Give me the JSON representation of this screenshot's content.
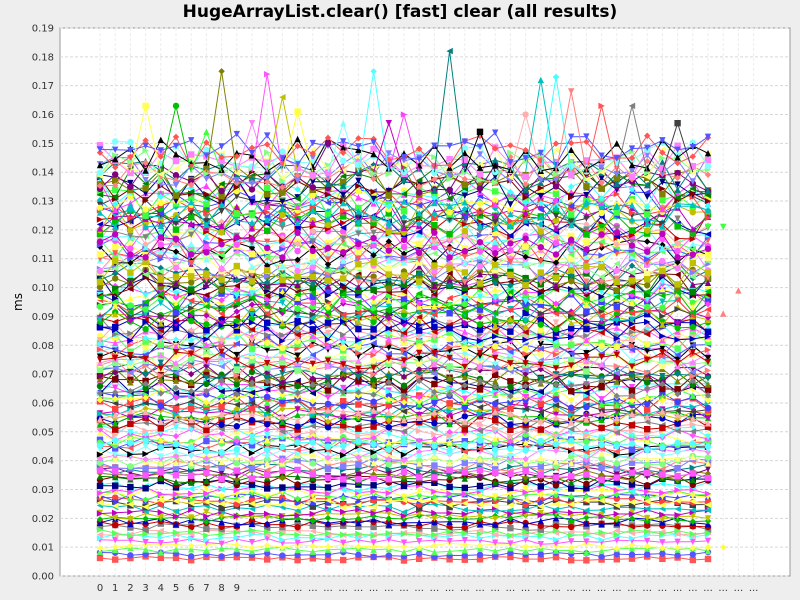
{
  "chart_data": {
    "type": "line",
    "title": "HugeArrayList.clear() [fast] clear (all results)",
    "xlabel": "",
    "ylabel": "ms",
    "ylim": [
      0,
      0.19
    ],
    "yticks": [
      "0.00",
      "0.01",
      "0.02",
      "0.03",
      "0.04",
      "0.05",
      "0.06",
      "0.07",
      "0.08",
      "0.09",
      "0.10",
      "0.11",
      "0.12",
      "0.13",
      "0.14",
      "0.15",
      "0.16",
      "0.17",
      "0.18",
      "0.19"
    ],
    "xticks": [
      "0",
      "1",
      "2",
      "3",
      "4",
      "5",
      "6",
      "7",
      "8",
      "9",
      "...",
      "...",
      "...",
      "...",
      "...",
      "...",
      "...",
      "...",
      "...",
      "...",
      "...",
      "...",
      "...",
      "...",
      "...",
      "...",
      "...",
      "...",
      "...",
      "...",
      "...",
      "...",
      "...",
      "...",
      "...",
      "...",
      "...",
      "...",
      "...",
      "...",
      "...",
      "...",
      "...",
      "..."
    ],
    "grid": true,
    "legend": "none",
    "num_points": 44,
    "num_series": 150,
    "series_levels_ms": [
      0.006,
      0.0075,
      0.009,
      0.0105,
      0.012,
      0.0135,
      0.015,
      0.017,
      0.018,
      0.019,
      0.02,
      0.021,
      0.022,
      0.0235,
      0.025,
      0.026,
      0.027,
      0.028,
      0.029,
      0.03,
      0.031,
      0.032,
      0.033,
      0.034,
      0.035,
      0.036,
      0.037,
      0.038,
      0.039,
      0.04,
      0.041,
      0.042,
      0.043,
      0.044,
      0.045,
      0.046,
      0.047,
      0.048,
      0.049,
      0.05,
      0.051,
      0.052,
      0.053,
      0.054,
      0.055,
      0.056,
      0.057,
      0.058,
      0.059,
      0.06,
      0.061,
      0.062,
      0.063,
      0.064,
      0.065,
      0.066,
      0.067,
      0.068,
      0.069,
      0.07,
      0.071,
      0.072,
      0.073,
      0.074,
      0.075,
      0.076,
      0.077,
      0.078,
      0.079,
      0.08,
      0.081,
      0.082,
      0.083,
      0.084,
      0.085,
      0.086,
      0.087,
      0.088,
      0.089,
      0.09,
      0.091,
      0.092,
      0.093,
      0.094,
      0.095,
      0.096,
      0.097,
      0.098,
      0.099,
      0.1,
      0.101,
      0.102,
      0.103,
      0.104,
      0.105,
      0.106,
      0.107,
      0.108,
      0.109,
      0.11,
      0.111,
      0.112,
      0.113,
      0.114,
      0.115,
      0.116,
      0.117,
      0.118,
      0.119,
      0.12,
      0.121,
      0.122,
      0.123,
      0.124,
      0.125,
      0.126,
      0.127,
      0.128,
      0.129,
      0.13,
      0.131,
      0.132,
      0.133,
      0.134,
      0.135,
      0.136,
      0.137,
      0.138,
      0.139,
      0.14,
      0.141,
      0.142,
      0.143,
      0.144,
      0.145,
      0.146,
      0.147,
      0.148,
      0.015,
      0.025,
      0.035,
      0.045,
      0.055,
      0.065,
      0.075,
      0.085,
      0.095,
      0.105,
      0.115,
      0.125
    ],
    "spikes": [
      {
        "x": 3,
        "y": 0.163
      },
      {
        "x": 5,
        "y": 0.163
      },
      {
        "x": 7,
        "y": 0.154
      },
      {
        "x": 8,
        "y": 0.175
      },
      {
        "x": 10,
        "y": 0.157
      },
      {
        "x": 11,
        "y": 0.174
      },
      {
        "x": 12,
        "y": 0.166
      },
      {
        "x": 13,
        "y": 0.161
      },
      {
        "x": 15,
        "y": 0.15
      },
      {
        "x": 16,
        "y": 0.157
      },
      {
        "x": 18,
        "y": 0.175
      },
      {
        "x": 19,
        "y": 0.157
      },
      {
        "x": 20,
        "y": 0.16
      },
      {
        "x": 23,
        "y": 0.182
      },
      {
        "x": 25,
        "y": 0.154
      },
      {
        "x": 28,
        "y": 0.16
      },
      {
        "x": 29,
        "y": 0.172
      },
      {
        "x": 30,
        "y": 0.173
      },
      {
        "x": 31,
        "y": 0.168
      },
      {
        "x": 33,
        "y": 0.163
      },
      {
        "x": 35,
        "y": 0.163
      },
      {
        "x": 38,
        "y": 0.157
      }
    ],
    "trailing_points": [
      {
        "x": 40,
        "y": 0.121
      },
      {
        "x": 41,
        "y": 0.121
      },
      {
        "x": 40,
        "y": 0.091
      },
      {
        "x": 41,
        "y": 0.091
      },
      {
        "x": 42,
        "y": 0.099
      },
      {
        "x": 40,
        "y": 0.01
      },
      {
        "x": 41,
        "y": 0.01
      }
    ],
    "colors": [
      "#ff5555",
      "#5555ff",
      "#55ff55",
      "#ffff55",
      "#ff55ff",
      "#55ffff",
      "#ffafaf",
      "#808080",
      "#c00000",
      "#0000c0",
      "#00c000",
      "#c0c000",
      "#c000c0",
      "#00c0c0",
      "#404040",
      "#ff4040",
      "#4040ff",
      "#40ff40",
      "#ffff40",
      "#ff40ff",
      "#40ffff",
      "#000080",
      "#800000",
      "#008000",
      "#808000",
      "#800080",
      "#008080",
      "#ff8080",
      "#8080ff",
      "#80ff80",
      "#ffff80",
      "#ff80ff",
      "#80ffff",
      "#000000"
    ]
  }
}
